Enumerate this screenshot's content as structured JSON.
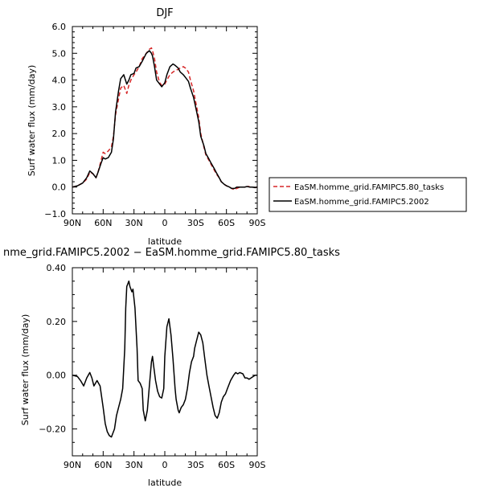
{
  "chart_data": [
    {
      "type": "line",
      "title": "DJF",
      "xlabel": "latitude",
      "ylabel": "Surf water flux (mm/day)",
      "xlim": [
        90,
        -90
      ],
      "ylim": [
        -1.0,
        6.0
      ],
      "x_ticks": [
        {
          "value": 90,
          "label": "90N"
        },
        {
          "value": 60,
          "label": "60N"
        },
        {
          "value": 30,
          "label": "30N"
        },
        {
          "value": 0,
          "label": "0"
        },
        {
          "value": -30,
          "label": "30S"
        },
        {
          "value": -60,
          "label": "60S"
        },
        {
          "value": -90,
          "label": "90S"
        }
      ],
      "y_ticks": [
        {
          "value": -1.0,
          "label": "−1.0"
        },
        {
          "value": 0.0,
          "label": "0.0"
        },
        {
          "value": 1.0,
          "label": "1.0"
        },
        {
          "value": 2.0,
          "label": "2.0"
        },
        {
          "value": 3.0,
          "label": "3.0"
        },
        {
          "value": 4.0,
          "label": "4.0"
        },
        {
          "value": 5.0,
          "label": "5.0"
        },
        {
          "value": 6.0,
          "label": "6.0"
        }
      ],
      "legend_position": "right",
      "series": [
        {
          "name": "EaSM.homme_grid.FAMIPC5.80_tasks",
          "color": "#d62728",
          "style": "dashed",
          "x": [
            90,
            85,
            80,
            76,
            73,
            70,
            67,
            65,
            62,
            60,
            58,
            55,
            52,
            50,
            48,
            45,
            43,
            40,
            37,
            35,
            33,
            30,
            28,
            25,
            22,
            20,
            18,
            15,
            13,
            12,
            10,
            8,
            5,
            3,
            0,
            -2,
            -5,
            -8,
            -10,
            -13,
            -15,
            -18,
            -20,
            -23,
            -25,
            -28,
            -30,
            -33,
            -35,
            -38,
            -40,
            -43,
            -45,
            -48,
            -50,
            -53,
            -55,
            -58,
            -60,
            -63,
            -65,
            -68,
            -70,
            -73,
            -75,
            -78,
            -80,
            -83,
            -85,
            -88,
            -90
          ],
          "y": [
            0.0,
            0.05,
            0.15,
            0.3,
            0.55,
            0.5,
            0.35,
            0.55,
            1.0,
            1.3,
            1.25,
            1.35,
            1.5,
            1.9,
            2.7,
            3.3,
            3.7,
            3.8,
            3.5,
            3.8,
            4.0,
            4.2,
            4.3,
            4.5,
            4.8,
            4.9,
            5.0,
            5.15,
            5.2,
            5.1,
            4.8,
            4.3,
            3.9,
            3.8,
            3.85,
            4.0,
            4.2,
            4.3,
            4.35,
            4.4,
            4.45,
            4.5,
            4.45,
            4.3,
            4.0,
            3.6,
            3.2,
            2.6,
            2.0,
            1.5,
            1.2,
            1.0,
            0.85,
            0.65,
            0.5,
            0.35,
            0.2,
            0.1,
            0.05,
            0.0,
            -0.05,
            -0.1,
            -0.05,
            0.0,
            0.0,
            0.0,
            0.05,
            0.0,
            0.0,
            -0.02,
            0.0
          ]
        },
        {
          "name": "EaSM.homme_grid.FAMIPC5.2002",
          "color": "#000000",
          "style": "solid",
          "x": [
            90,
            85,
            80,
            76,
            73,
            70,
            67,
            65,
            62,
            60,
            58,
            55,
            52,
            50,
            48,
            45,
            43,
            40,
            37,
            35,
            33,
            30,
            28,
            25,
            22,
            20,
            18,
            15,
            13,
            12,
            10,
            8,
            5,
            3,
            0,
            -2,
            -5,
            -8,
            -10,
            -13,
            -15,
            -18,
            -20,
            -23,
            -25,
            -28,
            -30,
            -33,
            -35,
            -38,
            -40,
            -43,
            -45,
            -48,
            -50,
            -53,
            -55,
            -58,
            -60,
            -63,
            -65,
            -68,
            -70,
            -73,
            -75,
            -78,
            -80,
            -83,
            -85,
            -88,
            -90
          ],
          "y": [
            0.0,
            0.05,
            0.15,
            0.35,
            0.6,
            0.5,
            0.35,
            0.55,
            0.9,
            1.1,
            1.05,
            1.1,
            1.3,
            1.8,
            2.8,
            3.6,
            4.05,
            4.2,
            3.85,
            4.0,
            4.2,
            4.25,
            4.45,
            4.5,
            4.7,
            4.85,
            5.0,
            5.1,
            5.0,
            4.9,
            4.5,
            4.0,
            3.85,
            3.75,
            3.9,
            4.2,
            4.5,
            4.6,
            4.55,
            4.45,
            4.3,
            4.2,
            4.1,
            3.95,
            3.7,
            3.35,
            3.0,
            2.45,
            1.9,
            1.55,
            1.25,
            1.05,
            0.9,
            0.7,
            0.55,
            0.35,
            0.2,
            0.1,
            0.05,
            0.0,
            -0.05,
            -0.05,
            0.0,
            0.0,
            0.0,
            0.0,
            0.02,
            0.0,
            0.0,
            -0.02,
            0.0
          ]
        }
      ]
    },
    {
      "type": "line",
      "title": "nme_grid.FAMIPC5.2002 − EaSM.homme_grid.FAMIPC5.80_tasks",
      "xlabel": "latitude",
      "ylabel": "Surf water flux (mm/day)",
      "xlim": [
        90,
        -90
      ],
      "ylim": [
        -0.3,
        0.4
      ],
      "x_ticks": [
        {
          "value": 90,
          "label": "90N"
        },
        {
          "value": 60,
          "label": "60N"
        },
        {
          "value": 30,
          "label": "30N"
        },
        {
          "value": 0,
          "label": "0"
        },
        {
          "value": -30,
          "label": "30S"
        },
        {
          "value": -60,
          "label": "60S"
        },
        {
          "value": -90,
          "label": "90S"
        }
      ],
      "y_ticks": [
        {
          "value": -0.2,
          "label": "−0.20"
        },
        {
          "value": 0.0,
          "label": "0.00"
        },
        {
          "value": 0.2,
          "label": "0.20"
        },
        {
          "value": 0.4,
          "label": "0.40"
        }
      ],
      "series": [
        {
          "color": "#000000",
          "style": "solid",
          "x": [
            90,
            85,
            82,
            79,
            76,
            73,
            71,
            69,
            66,
            63,
            60,
            58,
            56,
            54,
            52,
            49,
            47,
            45,
            43,
            41,
            39,
            38,
            37,
            35,
            34,
            32,
            31,
            29,
            27,
            26,
            24,
            22,
            21,
            19,
            17,
            15,
            13,
            12,
            11,
            9,
            7,
            5,
            3,
            1,
            0,
            -2,
            -4,
            -6,
            -8,
            -10,
            -11,
            -13,
            -14,
            -16,
            -18,
            -20,
            -22,
            -24,
            -26,
            -28,
            -29,
            -31,
            -33,
            -35,
            -37,
            -39,
            -41,
            -43,
            -45,
            -47,
            -49,
            -51,
            -53,
            -55,
            -57,
            -59,
            -61,
            -64,
            -67,
            -69,
            -71,
            -73,
            -76,
            -78,
            -80,
            -82,
            -84,
            -86,
            -88,
            -90
          ],
          "y": [
            0.0,
            -0.005,
            -0.02,
            -0.04,
            -0.01,
            0.01,
            -0.01,
            -0.04,
            -0.02,
            -0.04,
            -0.12,
            -0.18,
            -0.21,
            -0.225,
            -0.23,
            -0.2,
            -0.15,
            -0.12,
            -0.09,
            -0.05,
            0.1,
            0.25,
            0.33,
            0.35,
            0.33,
            0.31,
            0.32,
            0.25,
            0.1,
            -0.02,
            -0.03,
            -0.05,
            -0.13,
            -0.17,
            -0.13,
            -0.04,
            0.05,
            0.07,
            0.04,
            -0.02,
            -0.06,
            -0.08,
            -0.085,
            -0.05,
            0.07,
            0.18,
            0.21,
            0.15,
            0.06,
            -0.05,
            -0.09,
            -0.13,
            -0.14,
            -0.12,
            -0.11,
            -0.09,
            -0.05,
            0.01,
            0.05,
            0.07,
            0.1,
            0.13,
            0.16,
            0.15,
            0.12,
            0.06,
            0.0,
            -0.04,
            -0.08,
            -0.12,
            -0.15,
            -0.16,
            -0.14,
            -0.1,
            -0.08,
            -0.07,
            -0.05,
            -0.02,
            0.0,
            0.01,
            0.005,
            0.01,
            0.005,
            -0.01,
            -0.01,
            -0.015,
            -0.01,
            -0.005,
            0.0,
            0.0
          ]
        }
      ]
    }
  ]
}
